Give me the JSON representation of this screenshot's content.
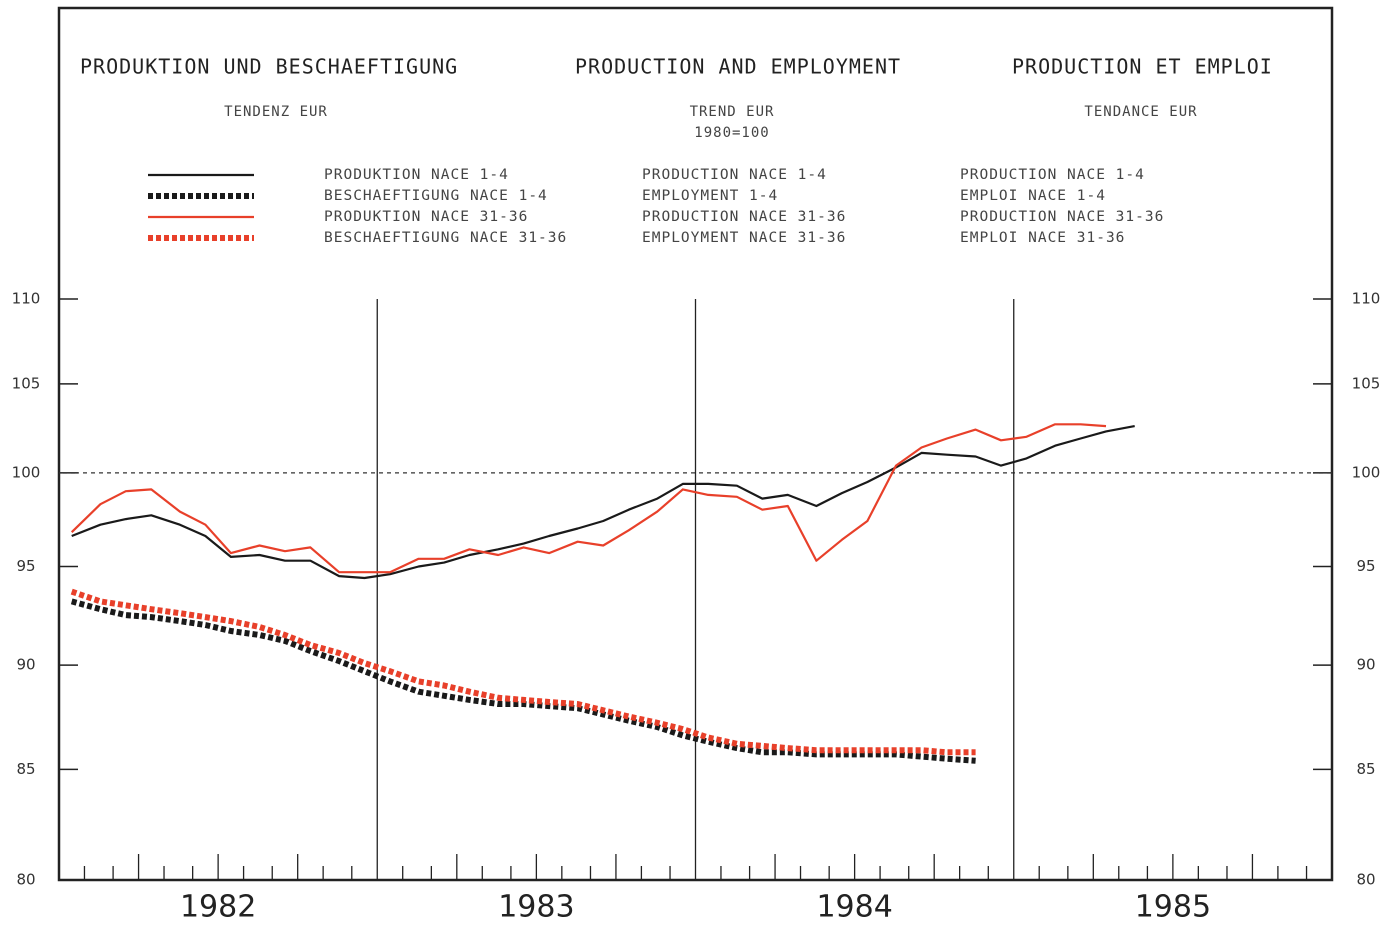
{
  "chart_data": {
    "type": "line",
    "titles": [
      "PRODUKTION UND BESCHAEFTIGUNG",
      "PRODUCTION AND EMPLOYMENT",
      "PRODUCTION ET EMPLOI"
    ],
    "subtitles": [
      "TENDENZ EUR",
      "TREND EUR",
      "1980=100",
      "TENDANCE EUR"
    ],
    "x": [
      1982.04,
      1982.13,
      1982.21,
      1982.29,
      1982.38,
      1982.46,
      1982.54,
      1982.63,
      1982.71,
      1982.79,
      1982.88,
      1982.96,
      1983.04,
      1983.13,
      1983.21,
      1983.29,
      1983.38,
      1983.46,
      1983.54,
      1983.63,
      1983.71,
      1983.79,
      1983.88,
      1983.96,
      1984.04,
      1984.13,
      1984.21,
      1984.29,
      1984.38,
      1984.46,
      1984.54,
      1984.63,
      1984.71,
      1984.79,
      1984.88,
      1984.96,
      1985.04,
      1985.13,
      1985.21,
      1985.29,
      1985.38
    ],
    "series": [
      {
        "name": "PRODUKTION NACE 1-4",
        "color": "#1a1a1a",
        "dotted": false,
        "values": [
          96.6,
          97.2,
          97.5,
          97.7,
          97.2,
          96.6,
          95.5,
          95.6,
          95.3,
          95.3,
          94.5,
          94.4,
          94.6,
          95.0,
          95.2,
          95.6,
          95.9,
          96.2,
          96.6,
          97.0,
          97.4,
          98.0,
          98.6,
          99.4,
          99.4,
          99.3,
          98.6,
          98.8,
          98.2,
          98.9,
          99.5,
          100.3,
          101.1,
          101.0,
          100.9,
          100.4,
          100.8,
          101.5,
          101.9,
          102.3,
          102.6
        ]
      },
      {
        "name": "BESCHAEFTIGUNG NACE 1-4",
        "color": "#1a1a1a",
        "dotted": true,
        "values": [
          93.2,
          92.8,
          92.5,
          92.4,
          92.2,
          92.0,
          91.7,
          91.5,
          91.2,
          90.7,
          90.2,
          89.7,
          89.2,
          88.7,
          88.5,
          88.3,
          88.1,
          88.1,
          88.0,
          87.9,
          87.6,
          87.3,
          87.0,
          86.6,
          86.3,
          86.0,
          85.8,
          85.8,
          85.7,
          85.7,
          85.7,
          85.7,
          85.6,
          85.5,
          85.4,
          null,
          null,
          null,
          null,
          null,
          null
        ]
      },
      {
        "name": "PRODUKTION NACE 31-36",
        "color": "#e8402a",
        "dotted": false,
        "values": [
          96.8,
          98.3,
          99.0,
          99.1,
          97.9,
          97.2,
          95.7,
          96.1,
          95.8,
          96.0,
          94.7,
          94.7,
          94.7,
          95.4,
          95.4,
          95.9,
          95.6,
          96.0,
          95.7,
          96.3,
          96.1,
          96.9,
          97.9,
          99.1,
          98.8,
          98.7,
          98.0,
          98.2,
          95.3,
          96.4,
          97.4,
          100.4,
          101.4,
          101.9,
          102.4,
          101.8,
          102.0,
          102.7,
          102.7,
          102.6,
          null
        ]
      },
      {
        "name": "BESCHAEFTIGUNG NACE 31-36",
        "color": "#e8402a",
        "dotted": true,
        "values": [
          93.7,
          93.2,
          93.0,
          92.8,
          92.6,
          92.4,
          92.2,
          91.9,
          91.5,
          91.0,
          90.6,
          90.1,
          89.7,
          89.2,
          89.0,
          88.7,
          88.4,
          88.3,
          88.2,
          88.1,
          87.8,
          87.5,
          87.2,
          86.9,
          86.5,
          86.2,
          86.1,
          86.0,
          85.9,
          85.9,
          85.9,
          85.9,
          85.9,
          85.8,
          85.8,
          null,
          null,
          null,
          null,
          null,
          null
        ]
      }
    ],
    "legend_en": [
      "PRODUCTION NACE 1-4",
      "EMPLOYMENT 1-4",
      "PRODUCTION NACE 31-36",
      "EMPLOYMENT NACE 31-36"
    ],
    "legend_fr": [
      "PRODUCTION NACE 1-4",
      "EMPLOI NACE 1-4",
      "PRODUCTION NACE 31-36",
      "EMPLOI NACE 31-36"
    ],
    "xlim": [
      1982,
      1986
    ],
    "xticks": [
      {
        "value": 1982.5,
        "label": "1982"
      },
      {
        "value": 1983.5,
        "label": "1983"
      },
      {
        "value": 1984.5,
        "label": "1984"
      },
      {
        "value": 1985.5,
        "label": "1985"
      }
    ],
    "xticks_minor": [
      1982.08,
      1982.17,
      1982.25,
      1982.33,
      1982.42,
      1982.5,
      1982.58,
      1982.67,
      1982.75,
      1982.83,
      1982.92,
      1983.08,
      1983.17,
      1983.25,
      1983.33,
      1983.42,
      1983.5,
      1983.58,
      1983.67,
      1983.75,
      1983.83,
      1983.92,
      1984.08,
      1984.17,
      1984.25,
      1984.33,
      1984.42,
      1984.5,
      1984.58,
      1984.67,
      1984.75,
      1984.83,
      1984.92,
      1985.08,
      1985.17,
      1985.25,
      1985.33,
      1985.42,
      1985.5,
      1985.58,
      1985.67,
      1985.75,
      1985.83,
      1985.92
    ],
    "year_lines": [
      1983,
      1984,
      1985
    ],
    "reference_line": 100,
    "ylim": [
      80,
      110
    ],
    "yticks": [
      80,
      85,
      90,
      95,
      100,
      105,
      110
    ],
    "log_y": true
  }
}
